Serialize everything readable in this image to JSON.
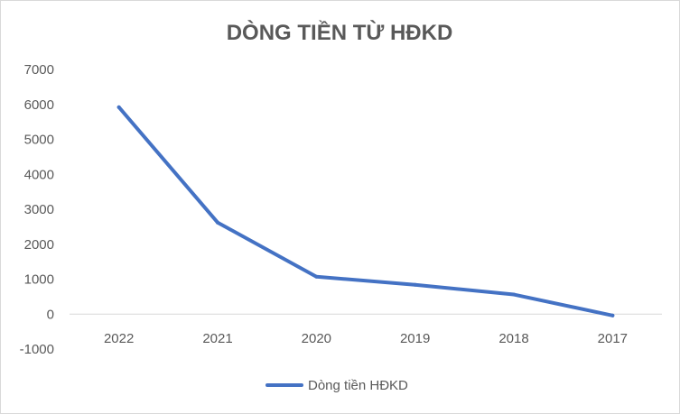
{
  "chart_data": {
    "type": "line",
    "title": "DÒNG TIỀN TỪ HĐKD",
    "categories": [
      "2022",
      "2021",
      "2020",
      "2019",
      "2018",
      "2017"
    ],
    "series": [
      {
        "name": "Dòng tiền HĐKD",
        "color": "#4472c4",
        "values": [
          5920,
          2620,
          1070,
          840,
          560,
          -40
        ]
      }
    ],
    "ylim": [
      -1000,
      7000
    ],
    "yticks": [
      "7000",
      "6000",
      "5000",
      "4000",
      "3000",
      "2000",
      "1000",
      "0",
      "-1000"
    ],
    "xlabel": "",
    "ylabel": "",
    "grid": false,
    "legend": "bottom"
  }
}
